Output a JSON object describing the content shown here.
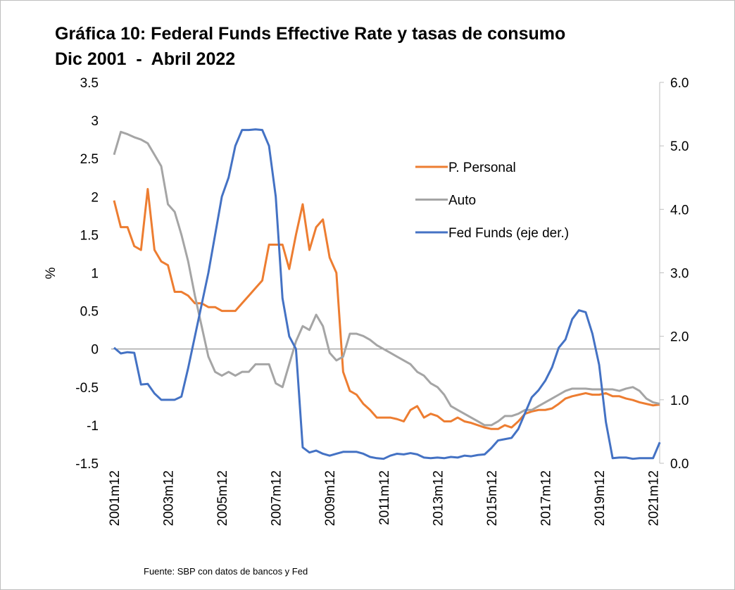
{
  "chart_data": {
    "type": "line",
    "title": "Gráfica 10: Federal Funds Effective Rate y tasas de consumo",
    "subtitle": "Dic 2001  -  Abril 2022",
    "y_label": "%",
    "source": "Fuente: SBP con datos de bancos y Fed",
    "legend": "upper right",
    "categories": [
      "2001m12",
      null,
      null,
      null,
      null,
      null,
      null,
      null,
      "2003m12",
      null,
      null,
      null,
      null,
      null,
      null,
      null,
      "2005m12",
      null,
      null,
      null,
      null,
      null,
      null,
      null,
      "2007m12",
      null,
      null,
      null,
      null,
      null,
      null,
      null,
      "2009m12",
      null,
      null,
      null,
      null,
      null,
      null,
      null,
      "2011m12",
      null,
      null,
      null,
      null,
      null,
      null,
      null,
      "2013m12",
      null,
      null,
      null,
      null,
      null,
      null,
      null,
      "2015m12",
      null,
      null,
      null,
      null,
      null,
      null,
      null,
      "2017m12",
      null,
      null,
      null,
      null,
      null,
      null,
      null,
      "2019m12",
      null,
      null,
      null,
      null,
      null,
      null,
      null,
      "2021m12",
      null
    ],
    "series": [
      {
        "name": "P. Personal",
        "color": "#ED7D31",
        "values": [
          1.95,
          1.6,
          1.6,
          1.35,
          1.3,
          2.1,
          1.3,
          1.15,
          1.1,
          0.75,
          0.75,
          0.7,
          0.6,
          0.6,
          0.55,
          0.55,
          0.5,
          0.5,
          0.5,
          0.6,
          0.7,
          0.8,
          0.9,
          1.37,
          1.37,
          1.37,
          1.05,
          1.5,
          1.9,
          1.3,
          1.6,
          1.7,
          1.2,
          1.0,
          -0.3,
          -0.55,
          -0.6,
          -0.72,
          -0.8,
          -0.9,
          -0.9,
          -0.9,
          -0.92,
          -0.95,
          -0.8,
          -0.75,
          -0.9,
          -0.85,
          -0.88,
          -0.95,
          -0.95,
          -0.9,
          -0.95,
          -0.97,
          -1.0,
          -1.03,
          -1.05,
          -1.05,
          -1.0,
          -1.03,
          -0.95,
          -0.85,
          -0.82,
          -0.8,
          -0.8,
          -0.78,
          -0.72,
          -0.65,
          -0.62,
          -0.6,
          -0.58,
          -0.6,
          -0.6,
          -0.58,
          -0.62,
          -0.62,
          -0.65,
          -0.67,
          -0.7,
          -0.72,
          -0.74,
          -0.73
        ]
      },
      {
        "name": "Auto",
        "color": "#A5A5A5",
        "values": [
          2.55,
          2.85,
          2.82,
          2.78,
          2.75,
          2.7,
          2.55,
          2.4,
          1.9,
          1.8,
          1.5,
          1.15,
          0.7,
          0.3,
          -0.1,
          -0.3,
          -0.35,
          -0.3,
          -0.35,
          -0.3,
          -0.3,
          -0.2,
          -0.2,
          -0.2,
          -0.45,
          -0.5,
          -0.2,
          0.1,
          0.3,
          0.25,
          0.45,
          0.3,
          -0.05,
          -0.15,
          -0.1,
          0.2,
          0.2,
          0.17,
          0.12,
          0.05,
          0.0,
          -0.05,
          -0.1,
          -0.15,
          -0.2,
          -0.3,
          -0.35,
          -0.45,
          -0.5,
          -0.6,
          -0.75,
          -0.8,
          -0.85,
          -0.9,
          -0.95,
          -1.0,
          -1.0,
          -0.95,
          -0.88,
          -0.88,
          -0.85,
          -0.8,
          -0.8,
          -0.75,
          -0.7,
          -0.65,
          -0.6,
          -0.55,
          -0.52,
          -0.52,
          -0.52,
          -0.53,
          -0.53,
          -0.53,
          -0.53,
          -0.55,
          -0.52,
          -0.5,
          -0.55,
          -0.65,
          -0.7,
          -0.72
        ]
      },
      {
        "name": "Fed Funds (eje der.)",
        "color": "#4472C4",
        "axis": "y2",
        "values": [
          1.82,
          1.73,
          1.75,
          1.74,
          1.24,
          1.25,
          1.1,
          1.0,
          1.0,
          1.0,
          1.05,
          1.5,
          2.0,
          2.5,
          3.0,
          3.6,
          4.2,
          4.5,
          5.0,
          5.25,
          5.25,
          5.26,
          5.25,
          5.0,
          4.2,
          2.6,
          2.0,
          1.8,
          0.25,
          0.17,
          0.2,
          0.15,
          0.12,
          0.15,
          0.18,
          0.18,
          0.18,
          0.15,
          0.1,
          0.08,
          0.07,
          0.12,
          0.15,
          0.14,
          0.16,
          0.14,
          0.09,
          0.08,
          0.09,
          0.08,
          0.1,
          0.09,
          0.12,
          0.11,
          0.13,
          0.14,
          0.24,
          0.36,
          0.38,
          0.4,
          0.54,
          0.79,
          1.04,
          1.15,
          1.3,
          1.51,
          1.82,
          1.95,
          2.27,
          2.41,
          2.38,
          2.04,
          1.55,
          0.65,
          0.08,
          0.09,
          0.09,
          0.07,
          0.08,
          0.08,
          0.08,
          0.33
        ]
      }
    ],
    "ylim": [
      -1.5,
      3.5
    ],
    "yticks": [
      -1.5,
      -1,
      -0.5,
      0,
      0.5,
      1,
      1.5,
      2,
      2.5,
      3,
      3.5
    ],
    "y2lim": [
      0,
      6
    ],
    "y2ticks": [
      {
        "value": 0,
        "label": "0.0"
      },
      {
        "value": 1,
        "label": "1.0"
      },
      {
        "value": 2,
        "label": "2.0"
      },
      {
        "value": 3,
        "label": "3.0"
      },
      {
        "value": 4,
        "label": "4.0"
      },
      {
        "value": 5,
        "label": "5.0"
      },
      {
        "value": 6,
        "label": "6.0"
      }
    ]
  }
}
